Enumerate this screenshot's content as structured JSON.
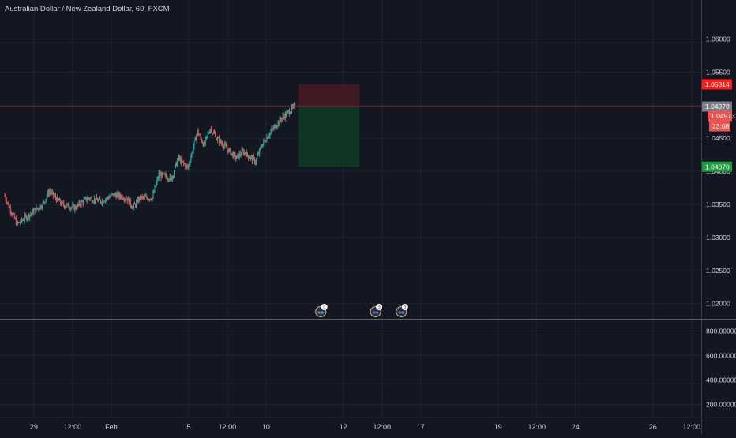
{
  "header": {
    "title": "Australian Dollar / New Zealand Dollar, 60, FXCM"
  },
  "colors": {
    "background": "#131722",
    "grid": "#1f2430",
    "text": "#d1d4dc",
    "axis_border": "#3a3e4a",
    "up": "#26a69a",
    "down": "#ef5350",
    "stop_zone": "#4a1a22",
    "target_zone": "#0f3a25",
    "current_line": "#8c3a40",
    "current_tag": "#ef5350",
    "stop_tag": "#ff1a1a",
    "target_tag": "#1e9a3c",
    "last_tag": "#787b86"
  },
  "chart_data": [
    {
      "type": "candlestick",
      "title": "Australian Dollar / New Zealand Dollar, 60, FXCM",
      "interval": "60",
      "source": "FXCM",
      "y_ticks": [
        "1.06000",
        "1.05500",
        "1.05000",
        "1.04500",
        "1.04000",
        "1.03500",
        "1.03000",
        "1.02500",
        "1.02000"
      ],
      "ylim": [
        1.0177,
        1.0659
      ],
      "x_ticks": [
        {
          "label": "29",
          "t": 9
        },
        {
          "label": "12:00",
          "t": 21
        },
        {
          "label": "Feb",
          "t": 33
        },
        {
          "label": "5",
          "t": 57
        },
        {
          "label": "12:00",
          "t": 69
        },
        {
          "label": "10",
          "t": 81
        },
        {
          "label": "12",
          "t": 105
        },
        {
          "label": "12:00",
          "t": 117
        },
        {
          "label": "17",
          "t": 129
        },
        {
          "label": "19",
          "t": 153
        },
        {
          "label": "12:00",
          "t": 165
        },
        {
          "label": "24",
          "t": 177
        },
        {
          "label": "26",
          "t": 201
        },
        {
          "label": "12:00",
          "t": 213
        }
      ],
      "xlim": [
        -1.5,
        216
      ],
      "grid": true,
      "series_path": [
        [
          0,
          1.0365
        ],
        [
          4,
          1.032
        ],
        [
          8,
          1.0335
        ],
        [
          12,
          1.035
        ],
        [
          14,
          1.037
        ],
        [
          18,
          1.035
        ],
        [
          22,
          1.0345
        ],
        [
          26,
          1.036
        ],
        [
          30,
          1.0355
        ],
        [
          34,
          1.0365
        ],
        [
          38,
          1.036
        ],
        [
          40,
          1.0345
        ],
        [
          42,
          1.036
        ],
        [
          46,
          1.036
        ],
        [
          48,
          1.0395
        ],
        [
          52,
          1.039
        ],
        [
          54,
          1.042
        ],
        [
          57,
          1.0405
        ],
        [
          60,
          1.046
        ],
        [
          62,
          1.044
        ],
        [
          64,
          1.0465
        ],
        [
          66,
          1.045
        ],
        [
          68,
          1.044
        ],
        [
          72,
          1.042
        ],
        [
          74,
          1.043
        ],
        [
          78,
          1.0415
        ],
        [
          80,
          1.044
        ],
        [
          82,
          1.0455
        ],
        [
          86,
          1.048
        ],
        [
          90,
          1.0497
        ]
      ],
      "current_price": "1.04979",
      "last_price": "1.04973",
      "countdown": "23:08",
      "position": {
        "type": "short",
        "entry": 1.04979,
        "stop": "1.05314",
        "target": "1.04070",
        "t_start": 91,
        "t_end": 110
      },
      "event_markers": [
        {
          "t": 98,
          "count": "2"
        },
        {
          "t": 115,
          "count": "2"
        },
        {
          "t": 123,
          "count": "2"
        }
      ],
      "volume_pane": {
        "y_ticks": [
          "800.00000",
          "600.00000",
          "400.00000",
          "200.00000"
        ],
        "ylim": [
          100,
          900
        ]
      }
    }
  ]
}
